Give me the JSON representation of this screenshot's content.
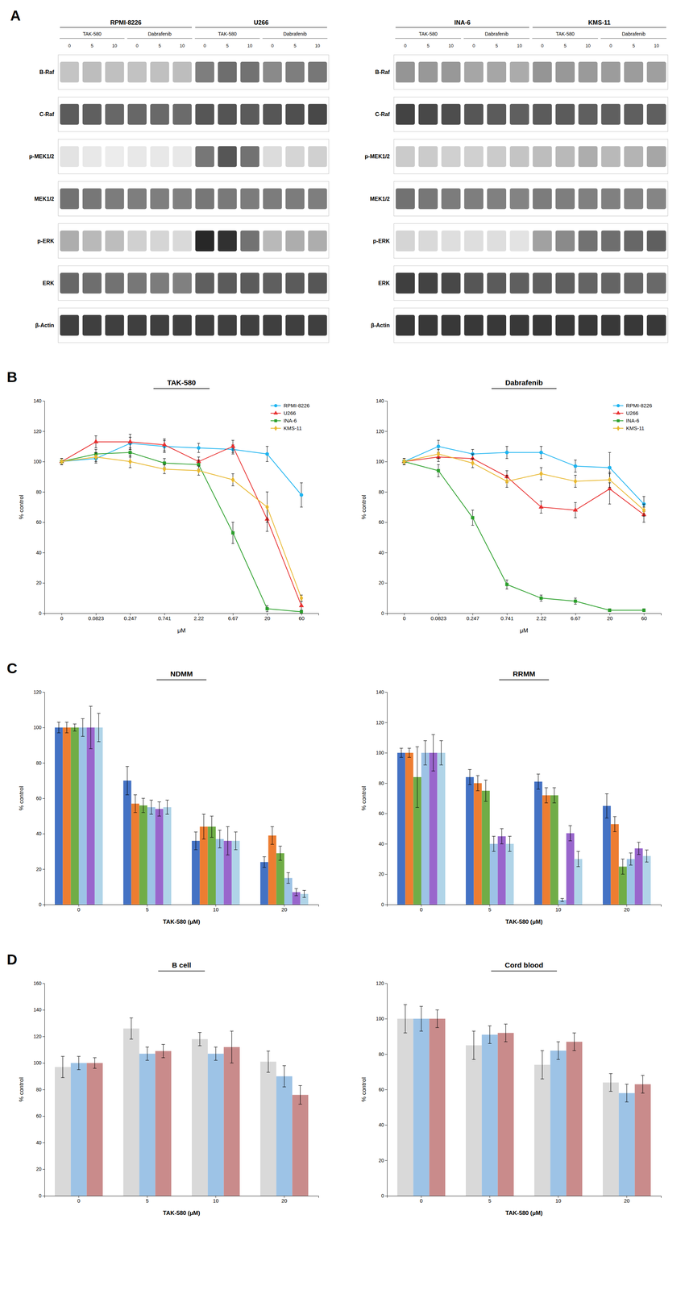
{
  "chart_data": [
    {
      "type": "heatmap",
      "annotations": [
        "A"
      ],
      "groups": [
        "RPMI-8226",
        "U266"
      ],
      "subgroups": [
        "TAK-580",
        "Dabrafenib",
        "TAK-580",
        "Dabrafenib"
      ],
      "categories": [
        "0",
        "5",
        "10",
        "0",
        "5",
        "10",
        "0",
        "5",
        "10",
        "0",
        "5",
        "10"
      ],
      "rows": [
        "B-Raf",
        "C-Raf",
        "p-MEK1/2",
        "MEK1/2",
        "p-ERK",
        "ERK",
        "β-Actin"
      ],
      "cells": [
        [
          0.25,
          0.28,
          0.27,
          0.26,
          0.27,
          0.28,
          0.55,
          0.62,
          0.6,
          0.5,
          0.55,
          0.58
        ],
        [
          0.7,
          0.68,
          0.65,
          0.65,
          0.64,
          0.63,
          0.72,
          0.73,
          0.7,
          0.72,
          0.75,
          0.78
        ],
        [
          0.12,
          0.1,
          0.08,
          0.1,
          0.1,
          0.1,
          0.58,
          0.72,
          0.6,
          0.15,
          0.18,
          0.2
        ],
        [
          0.6,
          0.58,
          0.56,
          0.55,
          0.55,
          0.54,
          0.58,
          0.57,
          0.56,
          0.56,
          0.56,
          0.55
        ],
        [
          0.35,
          0.3,
          0.28,
          0.2,
          0.18,
          0.16,
          0.92,
          0.88,
          0.6,
          0.3,
          0.35,
          0.35
        ],
        [
          0.65,
          0.62,
          0.6,
          0.58,
          0.56,
          0.54,
          0.68,
          0.7,
          0.7,
          0.68,
          0.7,
          0.72
        ],
        [
          0.82,
          0.82,
          0.82,
          0.82,
          0.82,
          0.82,
          0.82,
          0.82,
          0.82,
          0.82,
          0.82,
          0.82
        ]
      ]
    },
    {
      "type": "heatmap",
      "groups": [
        "INA-6",
        "KMS-11"
      ],
      "subgroups": [
        "TAK-580",
        "Dabrafenib",
        "TAK-580",
        "Dabrafenib"
      ],
      "categories": [
        "0",
        "5",
        "10",
        "0",
        "5",
        "10",
        "0",
        "5",
        "10",
        "0",
        "5",
        "10"
      ],
      "rows": [
        "B-Raf",
        "C-Raf",
        "p-MEK1/2",
        "MEK1/2",
        "p-ERK",
        "ERK",
        "β-Actin"
      ],
      "cells": [
        [
          0.45,
          0.44,
          0.44,
          0.38,
          0.38,
          0.36,
          0.45,
          0.44,
          0.43,
          0.42,
          0.42,
          0.41
        ],
        [
          0.8,
          0.78,
          0.76,
          0.72,
          0.7,
          0.68,
          0.7,
          0.7,
          0.68,
          0.68,
          0.68,
          0.68
        ],
        [
          0.22,
          0.22,
          0.2,
          0.2,
          0.22,
          0.25,
          0.28,
          0.3,
          0.35,
          0.3,
          0.32,
          0.38
        ],
        [
          0.6,
          0.58,
          0.56,
          0.55,
          0.54,
          0.53,
          0.56,
          0.55,
          0.54,
          0.54,
          0.53,
          0.52
        ],
        [
          0.18,
          0.16,
          0.14,
          0.14,
          0.14,
          0.12,
          0.4,
          0.5,
          0.6,
          0.62,
          0.65,
          0.68
        ],
        [
          0.82,
          0.8,
          0.78,
          0.72,
          0.7,
          0.68,
          0.68,
          0.68,
          0.66,
          0.66,
          0.65,
          0.64
        ],
        [
          0.85,
          0.85,
          0.85,
          0.85,
          0.85,
          0.85,
          0.85,
          0.85,
          0.85,
          0.85,
          0.85,
          0.85
        ]
      ]
    },
    {
      "type": "line",
      "annotations": [
        "B"
      ],
      "title": "TAK-580",
      "xlabel": "μM",
      "ylabel": "% control",
      "categories": [
        "0",
        "0.0823",
        "0.247",
        "0.741",
        "2.22",
        "6.67",
        "20",
        "60"
      ],
      "ylim": [
        0,
        140
      ],
      "yticks": [
        0,
        20,
        40,
        60,
        80,
        100,
        120,
        140
      ],
      "grid": false,
      "legend": "upper right",
      "series": [
        {
          "name": "RPMI-8226",
          "color": "#1eb4f0",
          "marker": "circle",
          "values": [
            100,
            102,
            112,
            110,
            109,
            108,
            105,
            78
          ],
          "errors": [
            2,
            3,
            4,
            4,
            3,
            3,
            5,
            8
          ]
        },
        {
          "name": "U266",
          "color": "#e83030",
          "marker": "triangle",
          "values": [
            100,
            113,
            113,
            111,
            100,
            110,
            62,
            5
          ],
          "errors": [
            2,
            4,
            5,
            4,
            3,
            4,
            8,
            3
          ]
        },
        {
          "name": "INA-6",
          "color": "#2ca02c",
          "marker": "square",
          "values": [
            100,
            105,
            106,
            99,
            98,
            53,
            3,
            1
          ],
          "errors": [
            2,
            3,
            3,
            3,
            3,
            7,
            2,
            1
          ]
        },
        {
          "name": "KMS-11",
          "color": "#e8b830",
          "marker": "diamond",
          "values": [
            100,
            103,
            100,
            95,
            94,
            88,
            70,
            10
          ],
          "errors": [
            2,
            3,
            4,
            3,
            3,
            4,
            10,
            2
          ]
        }
      ]
    },
    {
      "type": "line",
      "title": "Dabrafenib",
      "xlabel": "μM",
      "ylabel": "% control",
      "categories": [
        "0",
        "0.0823",
        "0.247",
        "0.741",
        "2.22",
        "6.67",
        "20",
        "60"
      ],
      "ylim": [
        0,
        140
      ],
      "yticks": [
        0,
        20,
        40,
        60,
        80,
        100,
        120,
        140
      ],
      "grid": false,
      "legend": "upper right",
      "series": [
        {
          "name": "RPMI-8226",
          "color": "#1eb4f0",
          "marker": "circle",
          "values": [
            100,
            110,
            105,
            106,
            106,
            97,
            96,
            72
          ],
          "errors": [
            2,
            4,
            3,
            4,
            4,
            4,
            10,
            5
          ]
        },
        {
          "name": "U266",
          "color": "#e83030",
          "marker": "triangle",
          "values": [
            100,
            103,
            102,
            90,
            70,
            68,
            82,
            65
          ],
          "errors": [
            2,
            3,
            3,
            4,
            4,
            5,
            10,
            5
          ]
        },
        {
          "name": "INA-6",
          "color": "#2ca02c",
          "marker": "square",
          "values": [
            100,
            94,
            63,
            19,
            10,
            8,
            2,
            2
          ],
          "errors": [
            2,
            4,
            5,
            3,
            2,
            2,
            1,
            1
          ]
        },
        {
          "name": "KMS-11",
          "color": "#e8b830",
          "marker": "diamond",
          "values": [
            100,
            105,
            99,
            87,
            92,
            87,
            88,
            68
          ],
          "errors": [
            2,
            3,
            3,
            4,
            4,
            4,
            5,
            4
          ]
        }
      ]
    },
    {
      "type": "bar",
      "annotations": [
        "C"
      ],
      "title": "NDMM",
      "xlabel": "TAK-580 (μM)",
      "ylabel": "% control",
      "categories": [
        "0",
        "5",
        "10",
        "20"
      ],
      "ylim": [
        0,
        120
      ],
      "yticks": [
        0,
        20,
        40,
        60,
        80,
        100,
        120
      ],
      "grid": false,
      "series": [
        {
          "color": "#4472c4",
          "values": [
            100,
            70,
            36,
            24
          ],
          "errors": [
            3,
            8,
            5,
            3
          ]
        },
        {
          "color": "#ed7d31",
          "values": [
            100,
            57,
            44,
            39
          ],
          "errors": [
            3,
            5,
            7,
            5
          ]
        },
        {
          "color": "#70ad47",
          "values": [
            100,
            56,
            44,
            29
          ],
          "errors": [
            2,
            4,
            6,
            4
          ]
        },
        {
          "color": "#9dc3e6",
          "values": [
            100,
            55,
            37,
            15
          ],
          "errors": [
            5,
            4,
            5,
            3
          ]
        },
        {
          "color": "#9966cc",
          "values": [
            100,
            54,
            36,
            7
          ],
          "errors": [
            12,
            4,
            8,
            2
          ]
        },
        {
          "color": "#b0d4e8",
          "values": [
            100,
            55,
            36,
            6
          ],
          "errors": [
            8,
            4,
            5,
            2
          ]
        }
      ]
    },
    {
      "type": "bar",
      "title": "RRMM",
      "xlabel": "TAK-580 (μM)",
      "ylabel": "% control",
      "categories": [
        "0",
        "5",
        "10",
        "20"
      ],
      "ylim": [
        0,
        140
      ],
      "yticks": [
        0,
        20,
        40,
        60,
        80,
        100,
        120,
        140
      ],
      "grid": false,
      "series": [
        {
          "color": "#4472c4",
          "values": [
            100,
            84,
            81,
            65
          ],
          "errors": [
            3,
            5,
            5,
            8
          ]
        },
        {
          "color": "#ed7d31",
          "values": [
            100,
            80,
            72,
            53
          ],
          "errors": [
            3,
            5,
            5,
            5
          ]
        },
        {
          "color": "#70ad47",
          "values": [
            84,
            75,
            72,
            25
          ],
          "errors": [
            20,
            7,
            5,
            5
          ]
        },
        {
          "color": "#9dc3e6",
          "values": [
            100,
            40,
            3,
            30
          ],
          "errors": [
            8,
            5,
            1,
            4
          ]
        },
        {
          "color": "#9966cc",
          "values": [
            100,
            45,
            47,
            37
          ],
          "errors": [
            12,
            5,
            5,
            4
          ]
        },
        {
          "color": "#b0d4e8",
          "values": [
            100,
            40,
            30,
            32
          ],
          "errors": [
            8,
            5,
            5,
            4
          ]
        }
      ]
    },
    {
      "type": "bar",
      "annotations": [
        "D"
      ],
      "title": "B cell",
      "xlabel": "TAK-580 (μM)",
      "ylabel": "% control",
      "categories": [
        "0",
        "5",
        "10",
        "20"
      ],
      "ylim": [
        0,
        160
      ],
      "yticks": [
        0,
        20,
        40,
        60,
        80,
        100,
        120,
        140,
        160
      ],
      "grid": false,
      "series": [
        {
          "color": "#d9d9d9",
          "values": [
            97,
            126,
            118,
            101
          ],
          "errors": [
            8,
            8,
            5,
            8
          ]
        },
        {
          "color": "#9dc3e6",
          "values": [
            100,
            107,
            107,
            90
          ],
          "errors": [
            5,
            5,
            5,
            8
          ]
        },
        {
          "color": "#c98b8b",
          "values": [
            100,
            109,
            112,
            76
          ],
          "errors": [
            4,
            5,
            12,
            7
          ]
        }
      ]
    },
    {
      "type": "bar",
      "title": "Cord blood",
      "xlabel": "TAK-580 (μM)",
      "ylabel": "% control",
      "categories": [
        "0",
        "5",
        "10",
        "20"
      ],
      "ylim": [
        0,
        120
      ],
      "yticks": [
        0,
        20,
        40,
        60,
        80,
        100,
        120
      ],
      "grid": false,
      "series": [
        {
          "color": "#d9d9d9",
          "values": [
            100,
            85,
            74,
            64
          ],
          "errors": [
            8,
            8,
            8,
            5
          ]
        },
        {
          "color": "#9dc3e6",
          "values": [
            100,
            91,
            82,
            58
          ],
          "errors": [
            7,
            5,
            5,
            5
          ]
        },
        {
          "color": "#c98b8b",
          "values": [
            100,
            92,
            87,
            63
          ],
          "errors": [
            5,
            5,
            5,
            5
          ]
        }
      ]
    }
  ]
}
